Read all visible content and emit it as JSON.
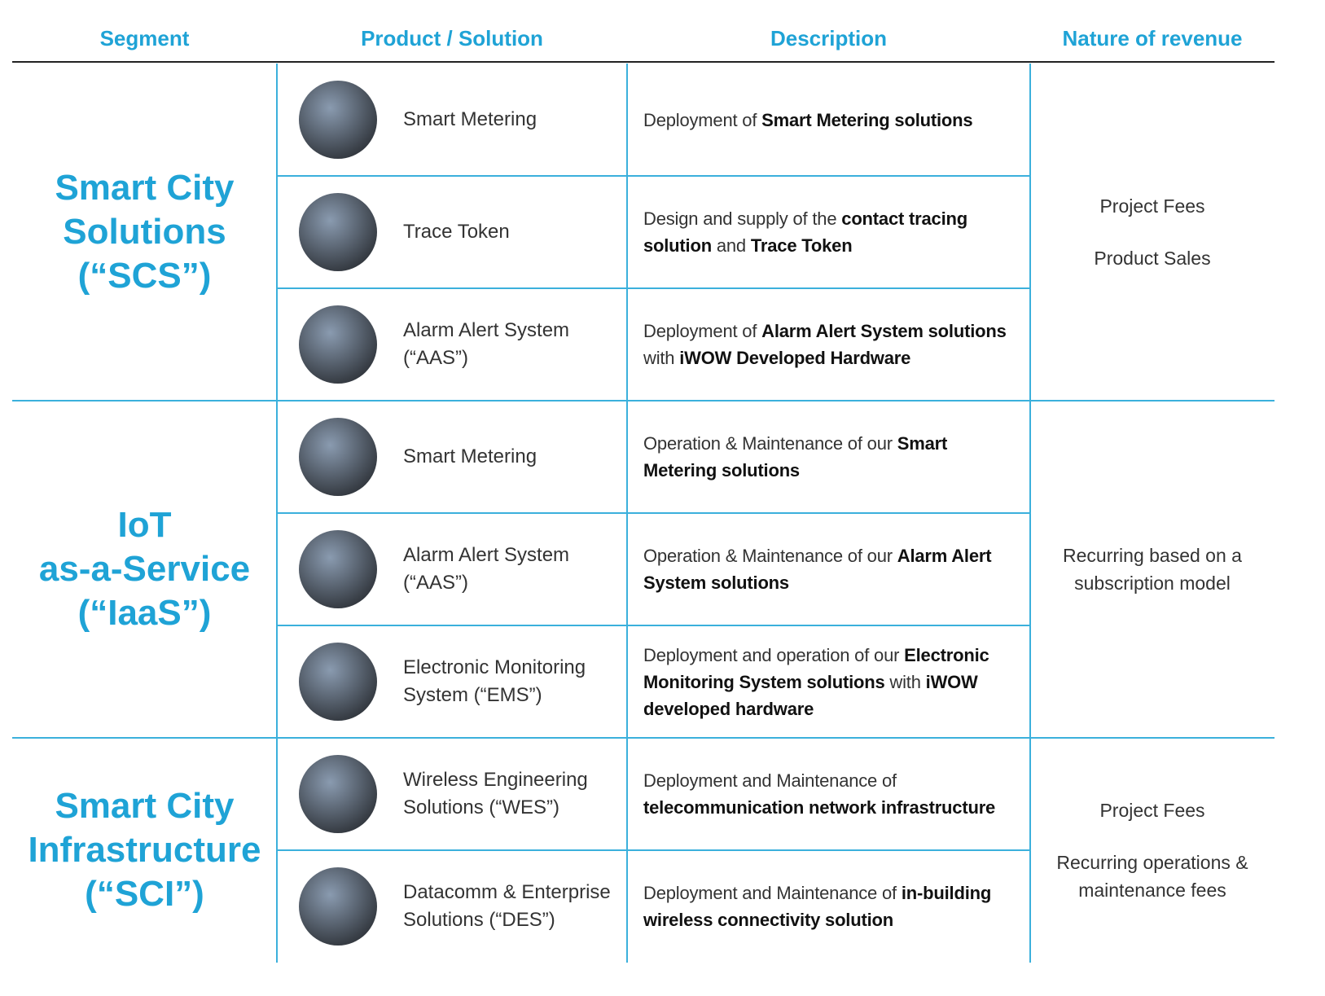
{
  "header": {
    "columns": [
      "Segment",
      "Product / Solution",
      "Description",
      "Nature of revenue"
    ]
  },
  "groups": [
    {
      "segment": [
        "Smart City",
        "Solutions",
        "(“SCS”)"
      ],
      "revenue": [
        "Project Fees",
        "Product Sales"
      ],
      "rows": [
        {
          "product": "Smart Metering",
          "description": [
            {
              "text": "Deployment of "
            },
            {
              "text": "Smart Metering solutions",
              "bold": true
            }
          ]
        },
        {
          "product": "Trace Token",
          "description": [
            {
              "text": "Design and supply of the "
            },
            {
              "text": "contact tracing solution",
              "bold": true
            },
            {
              "text": " and "
            },
            {
              "text": "Trace Token",
              "bold": true
            }
          ]
        },
        {
          "product": "Alarm Alert System (“AAS”)",
          "description": [
            {
              "text": "Deployment of "
            },
            {
              "text": "Alarm Alert System solutions",
              "bold": true
            },
            {
              "text": " with "
            },
            {
              "text": "iWOW Developed Hardware",
              "bold": true
            }
          ]
        }
      ]
    },
    {
      "segment": [
        "IoT",
        "as-a-Service",
        "(“IaaS”)"
      ],
      "revenue": [
        "Recurring based on a subscription model"
      ],
      "rows": [
        {
          "product": "Smart Metering",
          "description": [
            {
              "text": "Operation & Maintenance of our "
            },
            {
              "text": "Smart Metering solutions",
              "bold": true
            }
          ]
        },
        {
          "product": "Alarm Alert System (“AAS”)",
          "description": [
            {
              "text": "Operation & Maintenance of our "
            },
            {
              "text": "Alarm Alert System solutions",
              "bold": true
            }
          ]
        },
        {
          "product": "Electronic Monitoring System (“EMS”)",
          "description": [
            {
              "text": "Deployment and operation of our "
            },
            {
              "text": "Electronic Monitoring System solutions",
              "bold": true
            },
            {
              "text": " with "
            },
            {
              "text": "iWOW developed hardware",
              "bold": true
            }
          ]
        }
      ]
    },
    {
      "segment": [
        "Smart City",
        "Infrastructure",
        "(“SCI”)"
      ],
      "revenue": [
        "Project Fees",
        "Recurring operations & maintenance fees"
      ],
      "rows": [
        {
          "product": "Wireless Engineering Solutions (“WES”)",
          "description": [
            {
              "text": "Deployment and Maintenance of "
            },
            {
              "text": "telecommunication network infrastructure",
              "bold": true
            }
          ]
        },
        {
          "product": "Datacomm & Enterprise Solutions (“DES”)",
          "description": [
            {
              "text": "Deployment and Maintenance of "
            },
            {
              "text": "in-building wireless connectivity solution",
              "bold": true
            }
          ]
        }
      ]
    }
  ]
}
